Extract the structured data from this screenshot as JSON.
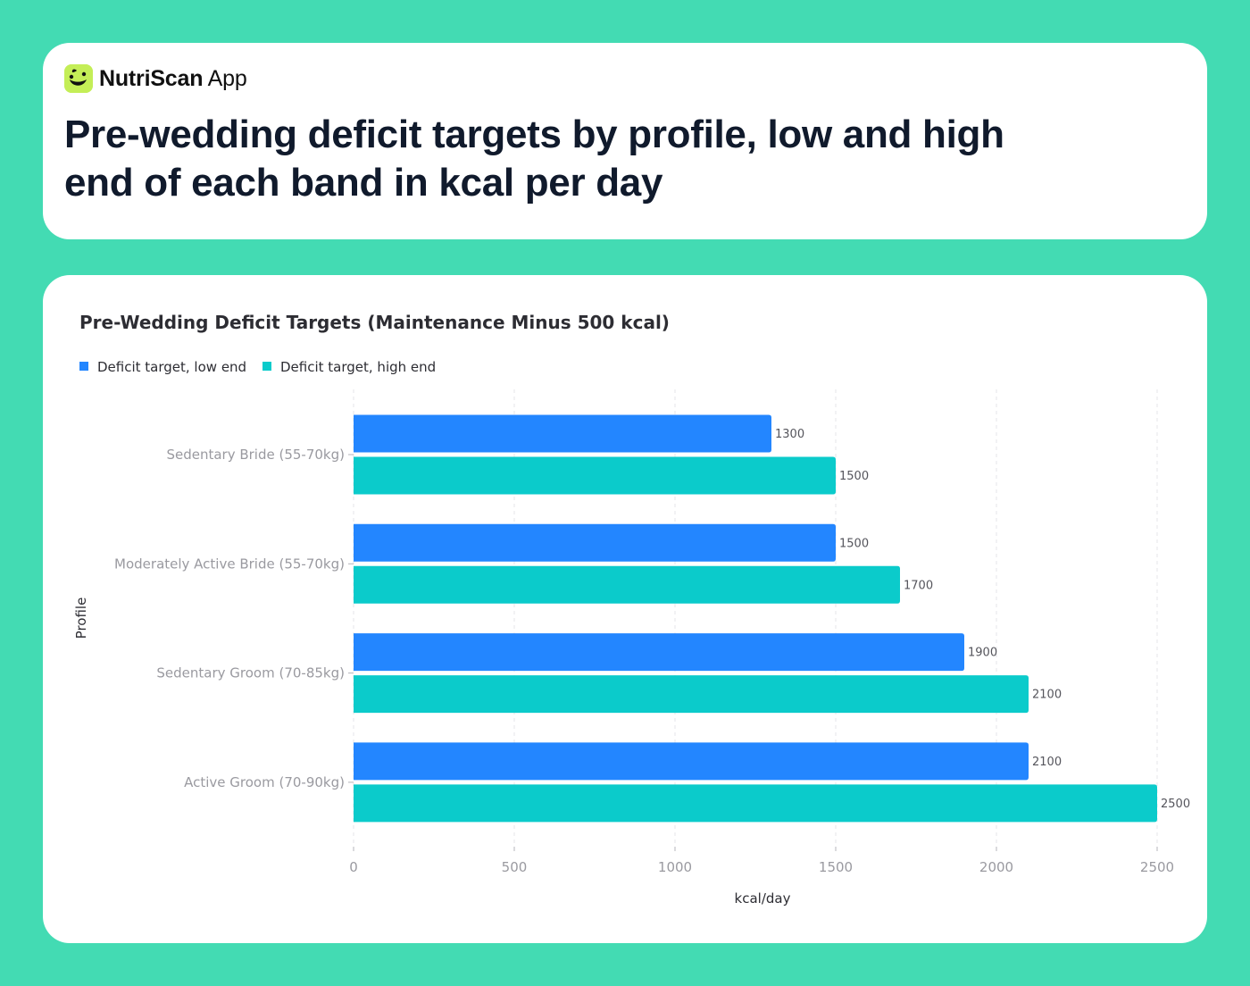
{
  "app": {
    "brand_name": "NutriScan",
    "brand_suffix": "App",
    "logo_icon": "smiling-leaf-icon",
    "headline": "Pre-wedding deficit targets by profile, low and high end of each band in kcal per day"
  },
  "colors": {
    "background": "#43dbb3",
    "logo": "#c4ee57",
    "series_low": "#2386ff",
    "series_high": "#0bcbcb"
  },
  "chart_data": {
    "type": "bar",
    "orientation": "horizontal",
    "title": "Pre-Wedding Deficit Targets (Maintenance Minus 500 kcal)",
    "xlabel": "kcal/day",
    "ylabel": "Profile",
    "categories": [
      "Sedentary Bride (55-70kg)",
      "Moderately Active Bride (55-70kg)",
      "Sedentary Groom (70-85kg)",
      "Active Groom (70-90kg)"
    ],
    "series": [
      {
        "name": "Deficit target, low end",
        "values": [
          1300,
          1500,
          1900,
          2100
        ],
        "color": "#2386ff"
      },
      {
        "name": "Deficit target, high end",
        "values": [
          1500,
          1700,
          2100,
          2500
        ],
        "color": "#0bcbcb"
      }
    ],
    "xlim": [
      0,
      2500
    ],
    "xticks": [
      0,
      500,
      1000,
      1500,
      2000,
      2500
    ],
    "grid": "vertical, dashed",
    "legend": "top-left",
    "data_labels": true
  }
}
